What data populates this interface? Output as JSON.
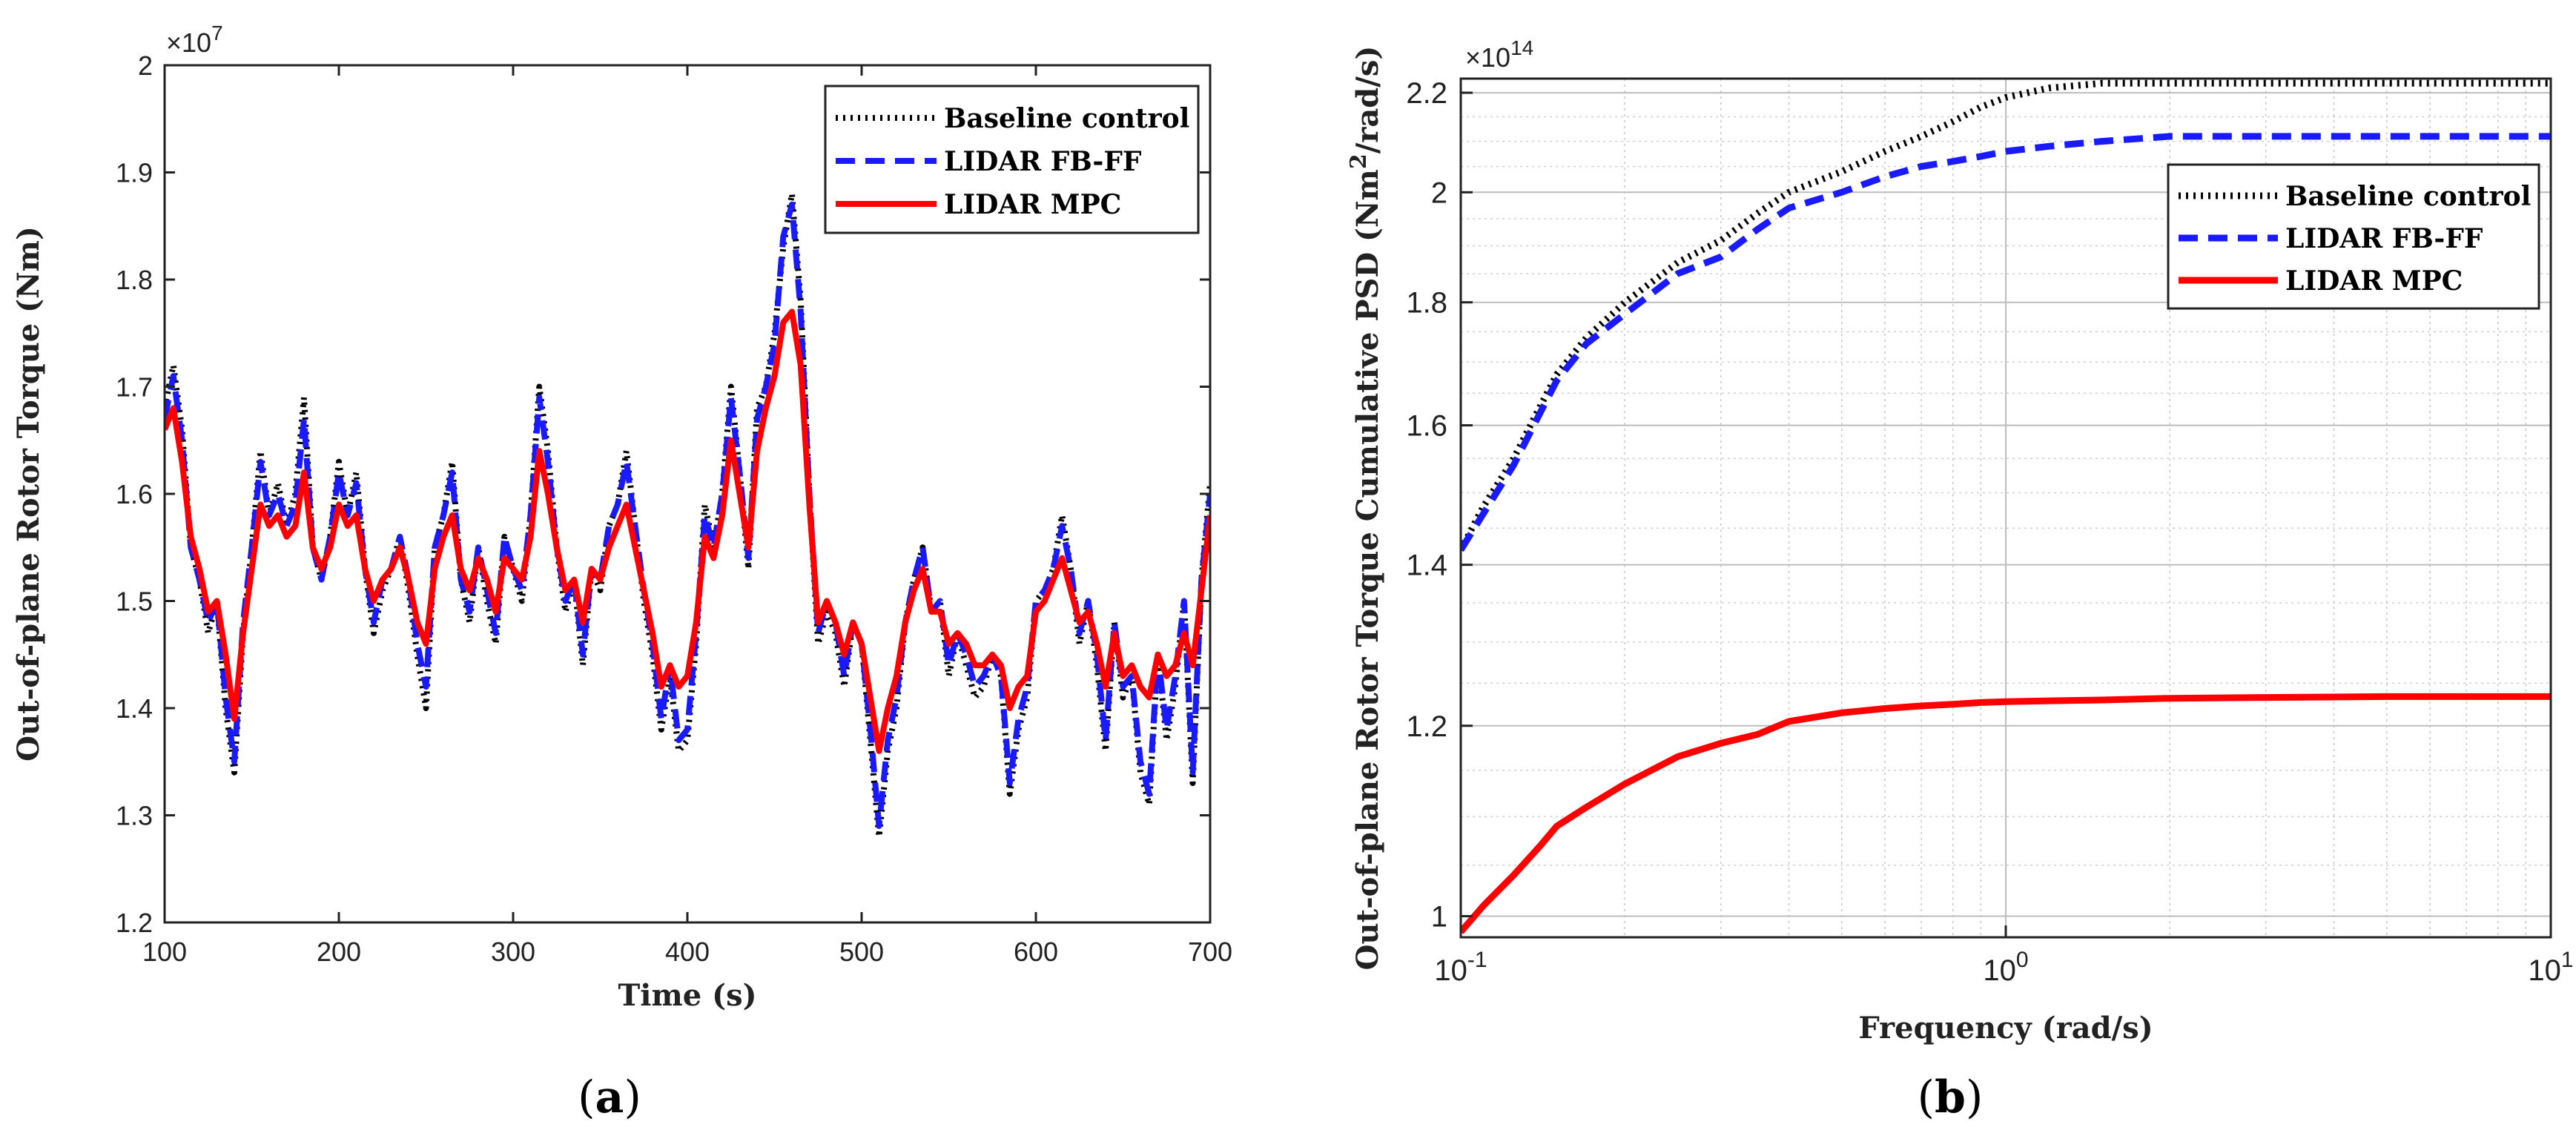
{
  "chart_data": [
    {
      "type": "line",
      "panel_label": "(a)",
      "panel_label_letter": "a",
      "title": "",
      "xlabel": "Time (s)",
      "ylabel": "Out-of-plane Rotor Torque (Nm)",
      "y_multiplier": "×10⁷",
      "y_multiplier_base": "×10",
      "y_multiplier_exp": "7",
      "xlim": [
        100,
        700
      ],
      "ylim": [
        1.2,
        2.0
      ],
      "xticks": [
        100,
        200,
        300,
        400,
        500,
        600,
        700
      ],
      "xtick_labels": [
        "100",
        "200",
        "300",
        "400",
        "500",
        "600",
        "700"
      ],
      "yticks": [
        1.2,
        1.3,
        1.4,
        1.5,
        1.6,
        1.7,
        1.8,
        1.9,
        2.0
      ],
      "ytick_labels": [
        "1.2",
        "1.3",
        "1.4",
        "1.5",
        "1.6",
        "1.7",
        "1.8",
        "1.9",
        "2"
      ],
      "grid": false,
      "legend_position": "top-right",
      "x": [
        100,
        105,
        110,
        115,
        120,
        125,
        130,
        135,
        140,
        145,
        150,
        155,
        160,
        165,
        170,
        175,
        180,
        185,
        190,
        195,
        200,
        205,
        210,
        215,
        220,
        225,
        230,
        235,
        240,
        245,
        250,
        255,
        260,
        265,
        270,
        275,
        280,
        285,
        290,
        295,
        300,
        305,
        310,
        315,
        320,
        325,
        330,
        335,
        340,
        345,
        350,
        355,
        360,
        365,
        370,
        375,
        380,
        385,
        390,
        395,
        400,
        405,
        410,
        415,
        420,
        425,
        430,
        435,
        440,
        445,
        450,
        455,
        460,
        465,
        470,
        475,
        480,
        485,
        490,
        495,
        500,
        505,
        510,
        515,
        520,
        525,
        530,
        535,
        540,
        545,
        550,
        555,
        560,
        565,
        570,
        575,
        580,
        585,
        590,
        595,
        600,
        605,
        610,
        615,
        620,
        625,
        630,
        635,
        640,
        645,
        650,
        655,
        660,
        665,
        670,
        675,
        680,
        685,
        690,
        695,
        700
      ],
      "series": [
        {
          "name": "Baseline control",
          "color": "#000000",
          "style": "dotted",
          "values": [
            1.68,
            1.72,
            1.66,
            1.55,
            1.52,
            1.47,
            1.5,
            1.4,
            1.34,
            1.47,
            1.55,
            1.64,
            1.58,
            1.61,
            1.57,
            1.6,
            1.69,
            1.55,
            1.52,
            1.56,
            1.63,
            1.58,
            1.62,
            1.53,
            1.47,
            1.51,
            1.53,
            1.56,
            1.51,
            1.45,
            1.4,
            1.55,
            1.58,
            1.63,
            1.52,
            1.48,
            1.55,
            1.5,
            1.46,
            1.56,
            1.53,
            1.5,
            1.58,
            1.7,
            1.64,
            1.55,
            1.49,
            1.52,
            1.44,
            1.53,
            1.51,
            1.57,
            1.59,
            1.64,
            1.57,
            1.5,
            1.45,
            1.38,
            1.43,
            1.36,
            1.37,
            1.46,
            1.59,
            1.55,
            1.6,
            1.7,
            1.62,
            1.53,
            1.68,
            1.7,
            1.75,
            1.83,
            1.88,
            1.78,
            1.6,
            1.46,
            1.49,
            1.47,
            1.42,
            1.48,
            1.46,
            1.37,
            1.28,
            1.36,
            1.4,
            1.48,
            1.52,
            1.55,
            1.49,
            1.5,
            1.43,
            1.47,
            1.44,
            1.41,
            1.42,
            1.45,
            1.43,
            1.32,
            1.38,
            1.41,
            1.5,
            1.51,
            1.53,
            1.58,
            1.53,
            1.46,
            1.5,
            1.44,
            1.36,
            1.48,
            1.41,
            1.43,
            1.34,
            1.31,
            1.45,
            1.37,
            1.42,
            1.5,
            1.33,
            1.52,
            1.61
          ]
        },
        {
          "name": "LIDAR FB-FF",
          "color": "#1a1aff",
          "style": "dashed",
          "values": [
            1.67,
            1.71,
            1.65,
            1.55,
            1.52,
            1.48,
            1.5,
            1.41,
            1.35,
            1.48,
            1.55,
            1.63,
            1.58,
            1.6,
            1.57,
            1.59,
            1.67,
            1.55,
            1.52,
            1.56,
            1.62,
            1.58,
            1.61,
            1.53,
            1.48,
            1.52,
            1.53,
            1.56,
            1.52,
            1.46,
            1.42,
            1.55,
            1.58,
            1.62,
            1.52,
            1.49,
            1.55,
            1.51,
            1.47,
            1.56,
            1.53,
            1.51,
            1.58,
            1.69,
            1.63,
            1.55,
            1.5,
            1.52,
            1.45,
            1.53,
            1.52,
            1.57,
            1.59,
            1.63,
            1.57,
            1.51,
            1.46,
            1.39,
            1.44,
            1.37,
            1.38,
            1.47,
            1.58,
            1.55,
            1.6,
            1.69,
            1.62,
            1.54,
            1.67,
            1.7,
            1.74,
            1.84,
            1.87,
            1.77,
            1.6,
            1.47,
            1.5,
            1.48,
            1.43,
            1.48,
            1.46,
            1.38,
            1.29,
            1.37,
            1.41,
            1.48,
            1.52,
            1.55,
            1.49,
            1.5,
            1.44,
            1.47,
            1.45,
            1.42,
            1.43,
            1.45,
            1.43,
            1.33,
            1.39,
            1.42,
            1.5,
            1.51,
            1.53,
            1.57,
            1.53,
            1.47,
            1.5,
            1.45,
            1.37,
            1.48,
            1.42,
            1.43,
            1.35,
            1.32,
            1.45,
            1.38,
            1.43,
            1.5,
            1.34,
            1.52,
            1.6
          ]
        },
        {
          "name": "LIDAR MPC",
          "color": "#ff0000",
          "style": "solid",
          "values": [
            1.66,
            1.68,
            1.63,
            1.56,
            1.53,
            1.49,
            1.5,
            1.45,
            1.39,
            1.47,
            1.53,
            1.59,
            1.57,
            1.58,
            1.56,
            1.57,
            1.62,
            1.55,
            1.53,
            1.55,
            1.59,
            1.57,
            1.58,
            1.53,
            1.5,
            1.52,
            1.53,
            1.55,
            1.52,
            1.48,
            1.46,
            1.53,
            1.56,
            1.58,
            1.53,
            1.51,
            1.54,
            1.52,
            1.49,
            1.54,
            1.53,
            1.52,
            1.56,
            1.64,
            1.6,
            1.55,
            1.51,
            1.52,
            1.48,
            1.53,
            1.52,
            1.55,
            1.57,
            1.59,
            1.55,
            1.51,
            1.47,
            1.42,
            1.44,
            1.42,
            1.43,
            1.48,
            1.56,
            1.54,
            1.58,
            1.65,
            1.6,
            1.55,
            1.64,
            1.68,
            1.71,
            1.76,
            1.77,
            1.72,
            1.59,
            1.48,
            1.5,
            1.48,
            1.45,
            1.48,
            1.46,
            1.41,
            1.36,
            1.4,
            1.43,
            1.48,
            1.51,
            1.53,
            1.49,
            1.49,
            1.46,
            1.47,
            1.46,
            1.44,
            1.44,
            1.45,
            1.44,
            1.4,
            1.42,
            1.43,
            1.49,
            1.5,
            1.52,
            1.54,
            1.51,
            1.48,
            1.49,
            1.46,
            1.42,
            1.47,
            1.43,
            1.44,
            1.42,
            1.41,
            1.45,
            1.43,
            1.44,
            1.47,
            1.44,
            1.51,
            1.58
          ]
        }
      ]
    },
    {
      "type": "line",
      "panel_label": "(b)",
      "panel_label_letter": "b",
      "title": "",
      "xlabel": "Frequency (rad/s)",
      "ylabel": "Out-of-plane Rotor Torque Cumulative PSD (Nm²/rad/s)",
      "ylabel_main": "Out-of-plane Rotor Torque Cumulative PSD (Nm",
      "ylabel_sup": "2",
      "ylabel_tail": "/rad/s)",
      "y_multiplier": "×10¹⁴",
      "y_multiplier_base": "×10",
      "y_multiplier_exp": "14",
      "xscale": "log",
      "yscale": "log",
      "xlim": [
        0.1,
        10
      ],
      "ylim": [
        0.98,
        2.23
      ],
      "xticks": [
        0.1,
        1,
        10
      ],
      "xtick_labels": [
        {
          "base": "10",
          "exp": "-1"
        },
        {
          "base": "10",
          "exp": "0"
        },
        {
          "base": "10",
          "exp": "1"
        }
      ],
      "yticks": [
        1.0,
        1.2,
        1.4,
        1.6,
        1.8,
        2.0,
        2.2
      ],
      "ytick_labels": [
        "1",
        "1.2",
        "1.4",
        "1.6",
        "1.8",
        "2",
        "2.2"
      ],
      "grid": true,
      "legend_position": "top-right",
      "x": [
        0.1,
        0.11,
        0.125,
        0.14,
        0.15,
        0.17,
        0.2,
        0.25,
        0.3,
        0.35,
        0.4,
        0.5,
        0.6,
        0.7,
        0.8,
        0.9,
        1.0,
        1.2,
        1.5,
        2.0,
        3.0,
        5.0,
        10.0
      ],
      "series": [
        {
          "name": "Baseline control",
          "color": "#000000",
          "style": "dotted",
          "values": [
            1.42,
            1.48,
            1.55,
            1.63,
            1.68,
            1.74,
            1.8,
            1.87,
            1.91,
            1.96,
            2.0,
            2.04,
            2.08,
            2.11,
            2.14,
            2.17,
            2.19,
            2.21,
            2.22,
            2.22,
            2.22,
            2.22,
            2.22
          ]
        },
        {
          "name": "LIDAR FB-FF",
          "color": "#1a1aff",
          "style": "dashed",
          "values": [
            1.42,
            1.47,
            1.54,
            1.62,
            1.67,
            1.73,
            1.78,
            1.85,
            1.88,
            1.93,
            1.97,
            2.0,
            2.03,
            2.05,
            2.06,
            2.07,
            2.08,
            2.09,
            2.1,
            2.11,
            2.11,
            2.11,
            2.11
          ]
        },
        {
          "name": "LIDAR MPC",
          "color": "#ff0000",
          "style": "solid",
          "values": [
            0.985,
            1.01,
            1.04,
            1.07,
            1.09,
            1.11,
            1.135,
            1.165,
            1.18,
            1.19,
            1.205,
            1.215,
            1.22,
            1.223,
            1.225,
            1.227,
            1.228,
            1.229,
            1.23,
            1.232,
            1.233,
            1.234,
            1.234
          ]
        }
      ]
    }
  ]
}
